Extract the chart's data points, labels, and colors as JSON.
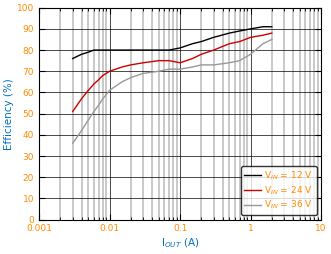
{
  "xlabel": "I$_{OUT}$ (A)",
  "ylabel": "Efficiency (%)",
  "xlim": [
    0.001,
    10
  ],
  "ylim": [
    0,
    100
  ],
  "yticks": [
    0,
    10,
    20,
    30,
    40,
    50,
    60,
    70,
    80,
    90,
    100
  ],
  "legend": [
    {
      "label": "V$_{IN}$ = 12 V",
      "color": "#000000"
    },
    {
      "label": "V$_{IN}$ = 24 V",
      "color": "#cc0000"
    },
    {
      "label": "V$_{IN}$ = 36 V",
      "color": "#999999"
    }
  ],
  "series": [
    {
      "color": "#000000",
      "x": [
        0.003,
        0.004,
        0.005,
        0.006,
        0.007,
        0.008,
        0.009,
        0.01,
        0.015,
        0.02,
        0.03,
        0.05,
        0.07,
        0.1,
        0.15,
        0.2,
        0.3,
        0.5,
        0.7,
        1.0,
        1.5,
        2.0
      ],
      "y": [
        76,
        78,
        79,
        80,
        80,
        80,
        80,
        80,
        80,
        80,
        80,
        80,
        80,
        81,
        83,
        84,
        86,
        88,
        89,
        90,
        91,
        91
      ]
    },
    {
      "color": "#cc0000",
      "x": [
        0.003,
        0.004,
        0.005,
        0.006,
        0.007,
        0.008,
        0.009,
        0.01,
        0.015,
        0.02,
        0.03,
        0.05,
        0.07,
        0.1,
        0.15,
        0.2,
        0.3,
        0.5,
        0.7,
        1.0,
        1.5,
        2.0
      ],
      "y": [
        51,
        57,
        61,
        64,
        66,
        68,
        69,
        70,
        72,
        73,
        74,
        75,
        75,
        74,
        76,
        78,
        80,
        83,
        84,
        86,
        87,
        88
      ]
    },
    {
      "color": "#999999",
      "x": [
        0.003,
        0.004,
        0.005,
        0.006,
        0.007,
        0.008,
        0.009,
        0.01,
        0.015,
        0.02,
        0.03,
        0.05,
        0.07,
        0.1,
        0.15,
        0.2,
        0.3,
        0.5,
        0.7,
        1.0,
        1.5,
        2.0
      ],
      "y": [
        36,
        42,
        47,
        51,
        54,
        57,
        59,
        61,
        65,
        67,
        69,
        70,
        71,
        71,
        72,
        73,
        73,
        74,
        75,
        78,
        83,
        85
      ]
    }
  ],
  "grid_color": "#000000",
  "bg_color": "#ffffff",
  "tick_color": "#ff8c00",
  "label_color": "#0070c0",
  "legend_text_color": "#ff8c00",
  "tick_fontsize": 6.5,
  "label_fontsize": 7.5,
  "legend_fontsize": 6.5
}
